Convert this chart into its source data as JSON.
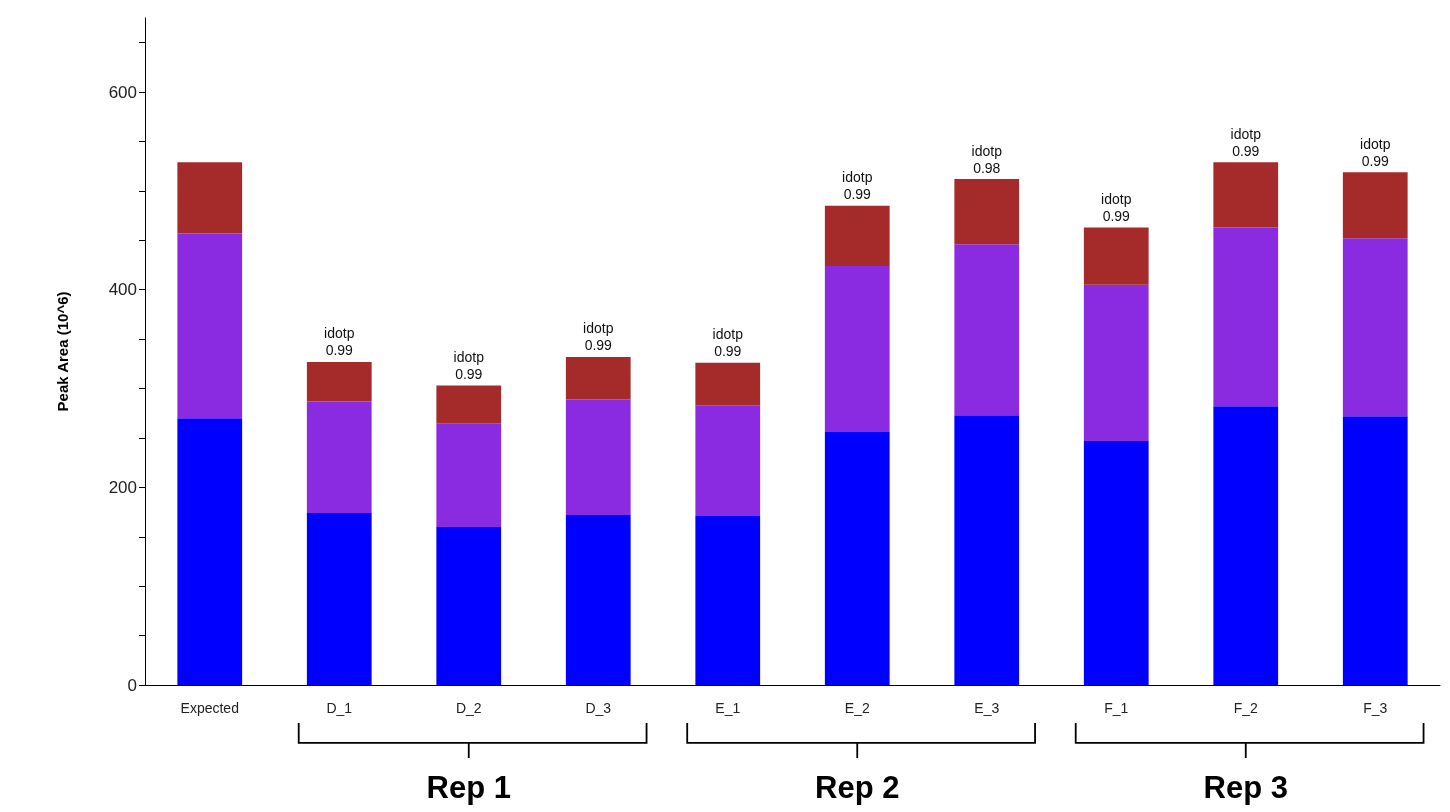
{
  "chart_data": {
    "type": "bar",
    "stacked": true,
    "ylabel": "Peak Area (10^6)",
    "categories": [
      "Expected",
      "D_1",
      "D_2",
      "D_3",
      "E_1",
      "E_2",
      "E_3",
      "F_1",
      "F_2",
      "F_3"
    ],
    "series": [
      {
        "color": "#0000ff",
        "values": [
          270,
          174,
          160,
          172,
          171,
          256,
          273,
          247,
          282,
          272
        ]
      },
      {
        "color": "#8a2be2",
        "values": [
          187,
          113,
          105,
          117,
          112,
          168,
          173,
          158,
          181,
          180
        ]
      },
      {
        "color": "#a52a2a",
        "values": [
          72,
          40,
          38,
          43,
          43,
          61,
          66,
          58,
          66,
          67
        ]
      }
    ],
    "ylim": [
      0,
      675
    ],
    "yticks": [
      0,
      {
        "value": 50,
        "label": null
      },
      {
        "value": 100,
        "label": null
      },
      {
        "value": 150,
        "label": null
      },
      200,
      {
        "value": 250,
        "label": null
      },
      {
        "value": 300,
        "label": null
      },
      {
        "value": 350,
        "label": null
      },
      400,
      {
        "value": 450,
        "label": null
      },
      {
        "value": 500,
        "label": null
      },
      {
        "value": 550,
        "label": null
      },
      600,
      {
        "value": 650,
        "label": null
      }
    ],
    "grid": false,
    "annotations": [
      {
        "text": "idotp\n0.99",
        "x": "D_1",
        "y": 327
      },
      {
        "text": "idotp\n0.99",
        "x": "D_2",
        "y": 303
      },
      {
        "text": "idotp\n0.99",
        "x": "D_3",
        "y": 332
      },
      {
        "text": "idotp\n0.99",
        "x": "E_1",
        "y": 326
      },
      {
        "text": "idotp\n0.99",
        "x": "E_2",
        "y": 485
      },
      {
        "text": "idotp\n0.98",
        "x": "E_3",
        "y": 512
      },
      {
        "text": "idotp\n0.99",
        "x": "F_1",
        "y": 463
      },
      {
        "text": "idotp\n0.99",
        "x": "F_2",
        "y": 529
      },
      {
        "text": "idotp\n0.99",
        "x": "F_3",
        "y": 519
      },
      "Rep 1",
      "Rep 2",
      "Rep 3"
    ]
  }
}
